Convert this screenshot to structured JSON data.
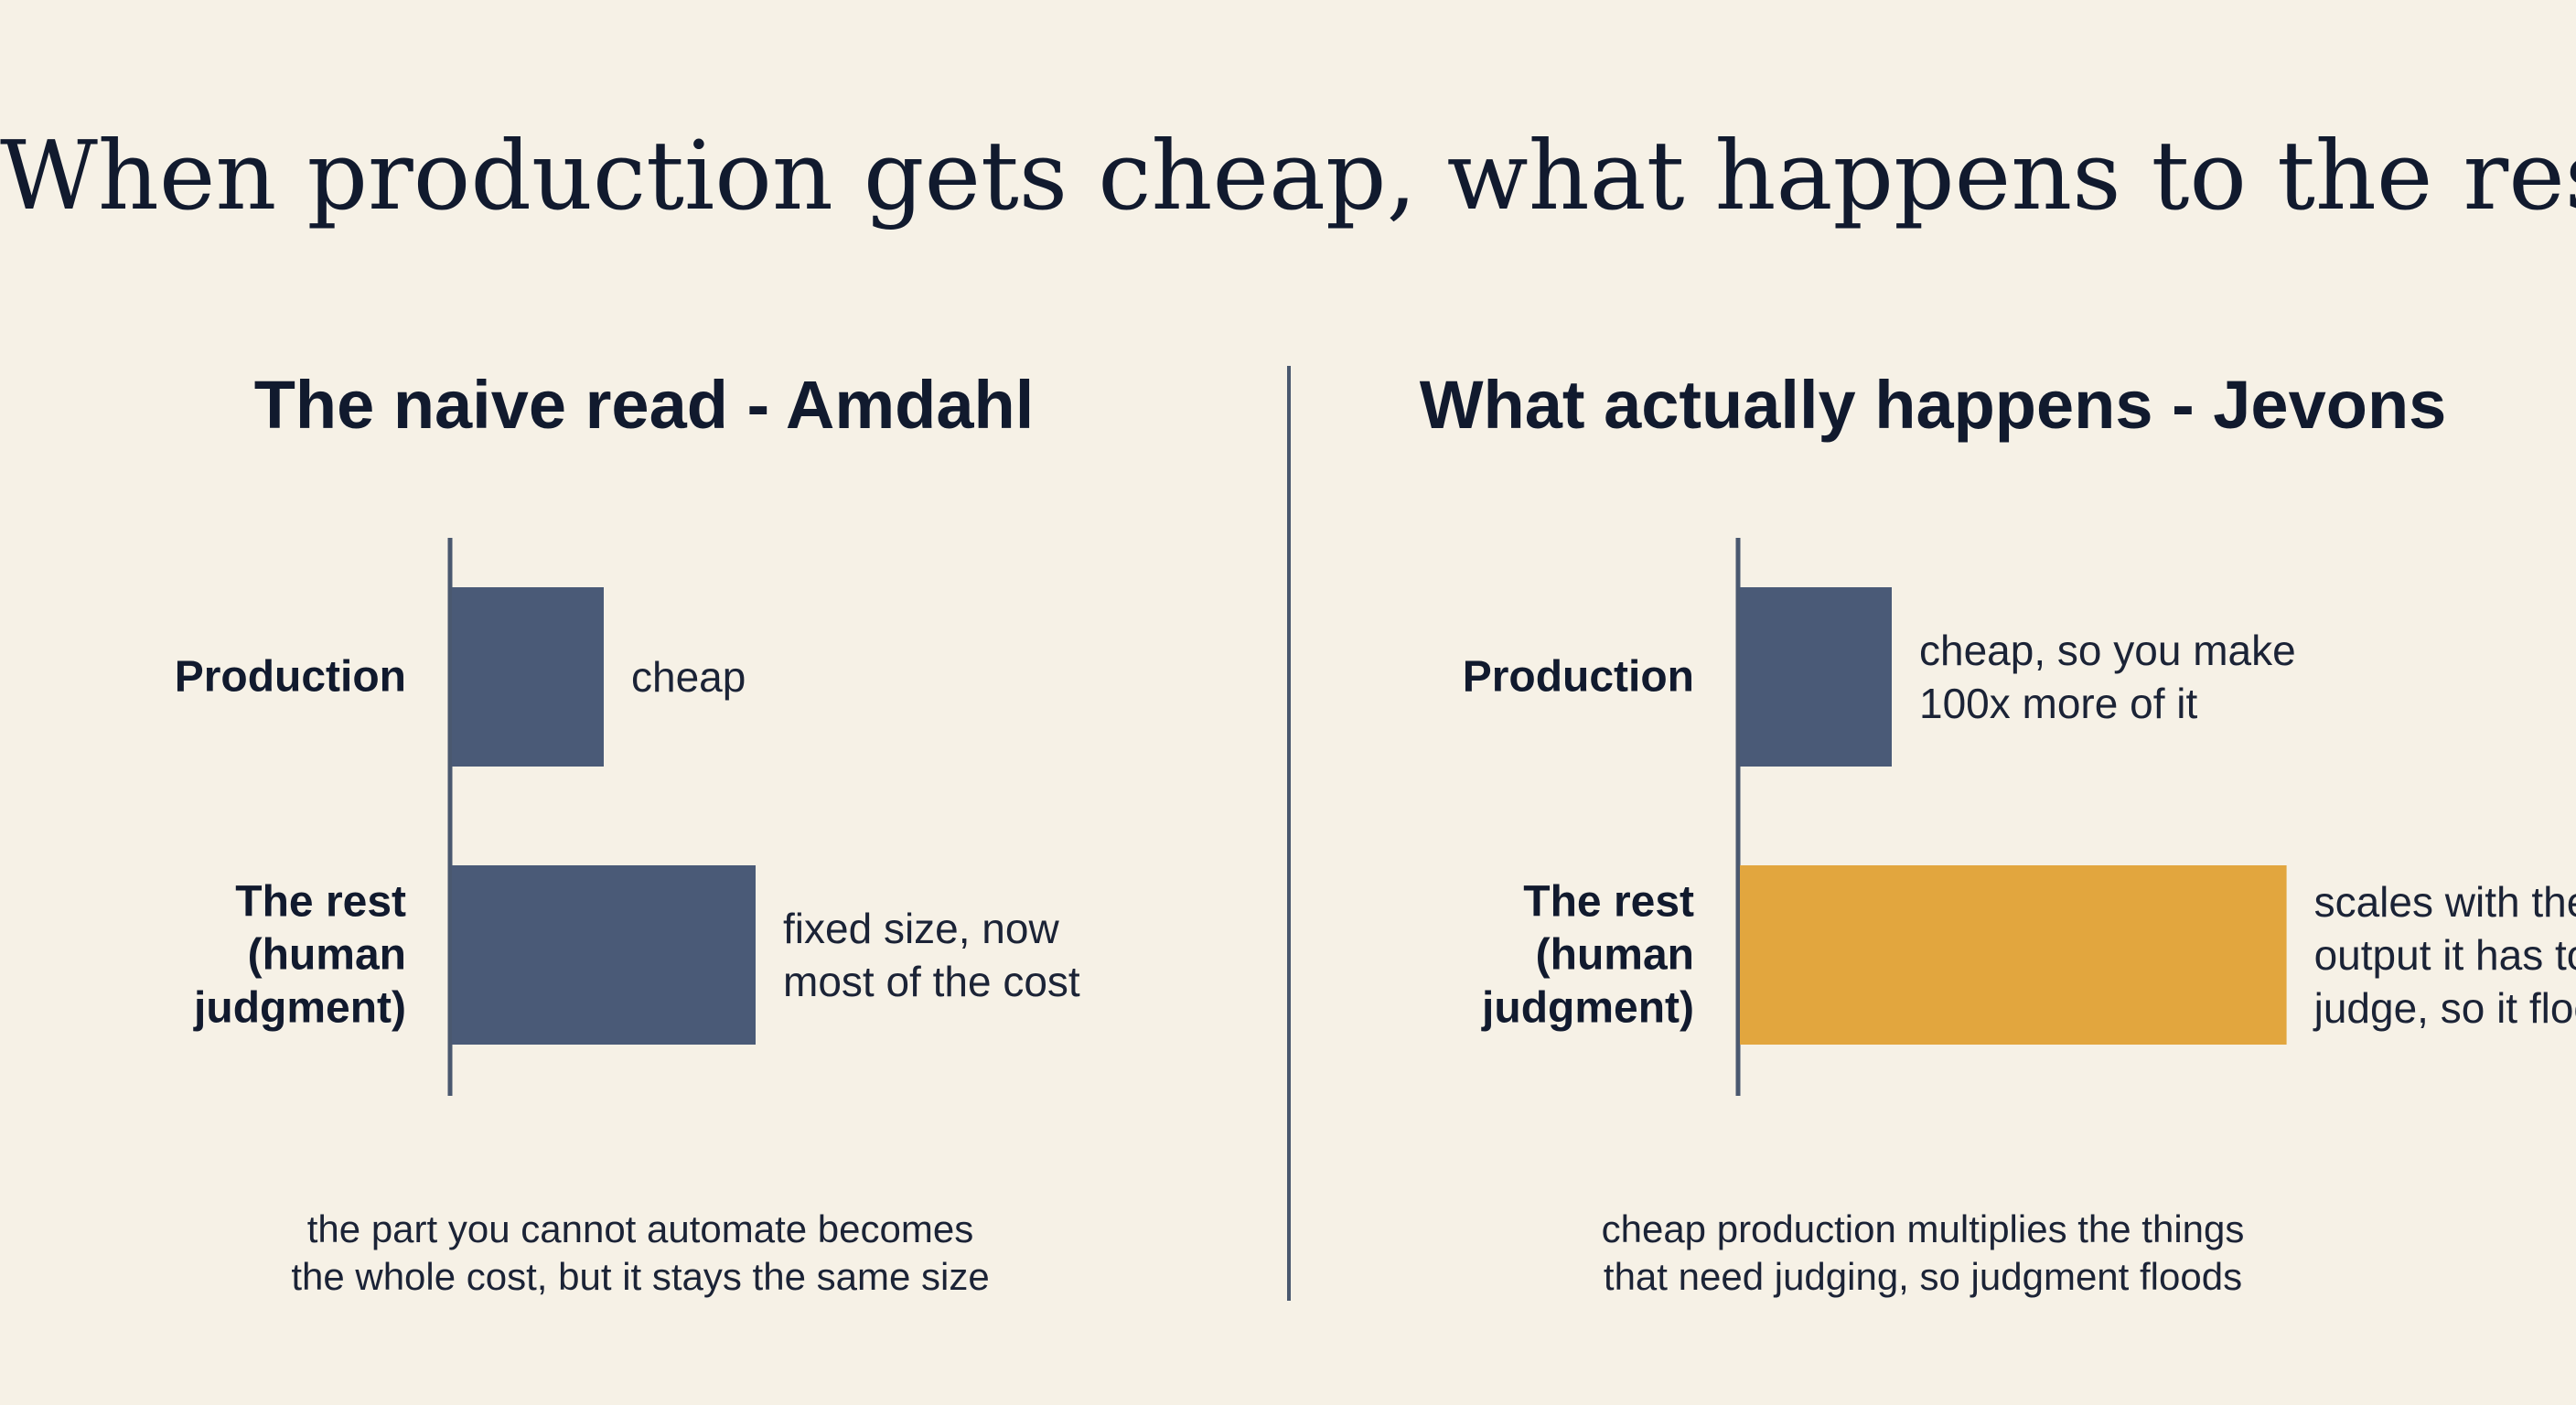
{
  "title": "When production gets cheap, what happens to the rest?",
  "colors": {
    "background": "#f6f1e6",
    "bar_blue": "#4a5a77",
    "bar_gold": "#e2a63e",
    "axis": "#4a586f",
    "text": "#111a2e"
  },
  "chart_data": [
    {
      "type": "bar",
      "orientation": "horizontal",
      "title": "The naive read - Amdahl",
      "categories": [
        [
          "Production"
        ],
        [
          "The rest",
          "(human",
          "judgment)"
        ]
      ],
      "values": [
        1,
        2
      ],
      "value_scale": "relative size (no axis printed)",
      "colors": [
        "#4a5a77",
        "#4a5a77"
      ],
      "annotations": [
        [
          "cheap"
        ],
        [
          "fixed size, now",
          "most of the cost"
        ]
      ],
      "caption": [
        "the part you cannot automate becomes",
        "the whole cost, but it stays the same size"
      ],
      "xlabel": "",
      "ylabel": "",
      "grid": false,
      "legend": "none"
    },
    {
      "type": "bar",
      "orientation": "horizontal",
      "title": "What actually happens - Jevons",
      "categories": [
        [
          "Production"
        ],
        [
          "The rest",
          "(human",
          "judgment)"
        ]
      ],
      "values": [
        1,
        3.6
      ],
      "value_scale": "relative size (no axis printed)",
      "colors": [
        "#4a5a77",
        "#e2a63e"
      ],
      "annotations": [
        [
          "cheap, so you make",
          "100x more of it"
        ],
        [
          "scales with the",
          "output it has to",
          "judge, so it floods"
        ]
      ],
      "caption": [
        "cheap production multiplies the things",
        "that need judging, so judgment floods"
      ],
      "xlabel": "",
      "ylabel": "",
      "grid": false,
      "legend": "none"
    }
  ]
}
